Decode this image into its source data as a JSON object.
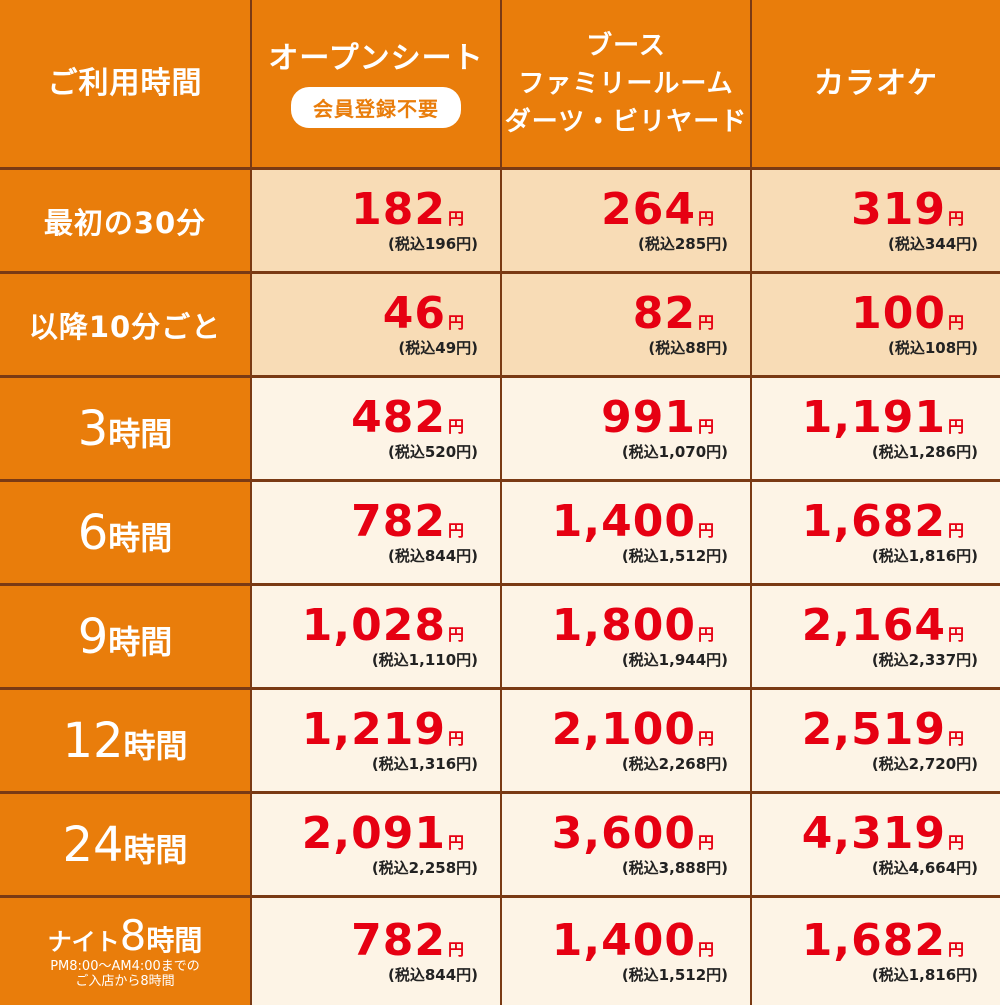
{
  "header": {
    "time_label": "ご利用時間",
    "col_open_seat": "オープンシート",
    "badge_no_membership": "会員登録不要",
    "col_booth_line1": "ブース",
    "col_booth_line2": "ファミリールーム",
    "col_booth_line3": "ダーツ・ビリヤード",
    "col_karaoke": "カラオケ"
  },
  "rows": [
    {
      "label": "最初の30分",
      "prices": [
        {
          "price": "182",
          "yen": "円",
          "tax": "(税込196円)"
        },
        {
          "price": "264",
          "yen": "円",
          "tax": "(税込285円)"
        },
        {
          "price": "319",
          "yen": "円",
          "tax": "(税込344円)"
        }
      ]
    },
    {
      "label": "以降10分ごと",
      "prices": [
        {
          "price": "46",
          "yen": "円",
          "tax": "(税込49円)"
        },
        {
          "price": "82",
          "yen": "円",
          "tax": "(税込88円)"
        },
        {
          "price": "100",
          "yen": "円",
          "tax": "(税込108円)"
        }
      ]
    },
    {
      "label_num": "3",
      "label_unit": "時間",
      "prices": [
        {
          "price": "482",
          "yen": "円",
          "tax": "(税込520円)"
        },
        {
          "price": "991",
          "yen": "円",
          "tax": "(税込1,070円)"
        },
        {
          "price": "1,191",
          "yen": "円",
          "tax": "(税込1,286円)"
        }
      ]
    },
    {
      "label_num": "6",
      "label_unit": "時間",
      "prices": [
        {
          "price": "782",
          "yen": "円",
          "tax": "(税込844円)"
        },
        {
          "price": "1,400",
          "yen": "円",
          "tax": "(税込1,512円)"
        },
        {
          "price": "1,682",
          "yen": "円",
          "tax": "(税込1,816円)"
        }
      ]
    },
    {
      "label_num": "9",
      "label_unit": "時間",
      "prices": [
        {
          "price": "1,028",
          "yen": "円",
          "tax": "(税込1,110円)"
        },
        {
          "price": "1,800",
          "yen": "円",
          "tax": "(税込1,944円)"
        },
        {
          "price": "2,164",
          "yen": "円",
          "tax": "(税込2,337円)"
        }
      ]
    },
    {
      "label_num": "12",
      "label_unit": "時間",
      "prices": [
        {
          "price": "1,219",
          "yen": "円",
          "tax": "(税込1,316円)"
        },
        {
          "price": "2,100",
          "yen": "円",
          "tax": "(税込2,268円)"
        },
        {
          "price": "2,519",
          "yen": "円",
          "tax": "(税込2,720円)"
        }
      ]
    },
    {
      "label_num": "24",
      "label_unit": "時間",
      "prices": [
        {
          "price": "2,091",
          "yen": "円",
          "tax": "(税込2,258円)"
        },
        {
          "price": "3,600",
          "yen": "円",
          "tax": "(税込3,888円)"
        },
        {
          "price": "4,319",
          "yen": "円",
          "tax": "(税込4,664円)"
        }
      ]
    },
    {
      "label_pre": "ナイト",
      "label_num": "8",
      "label_unit": "時間",
      "note_line1": "PM8:00～AM4:00までの",
      "note_line2": "ご入店から8時間",
      "prices": [
        {
          "price": "782",
          "yen": "円",
          "tax": "(税込844円)"
        },
        {
          "price": "1,400",
          "yen": "円",
          "tax": "(税込1,512円)"
        },
        {
          "price": "1,682",
          "yen": "円",
          "tax": "(税込1,816円)"
        }
      ]
    }
  ],
  "colors": {
    "orange": "#e97d0b",
    "peach": "#f8dcb6",
    "cream": "#fdf4e6",
    "price_red": "#e60012",
    "border_brown": "#7a3a14"
  }
}
